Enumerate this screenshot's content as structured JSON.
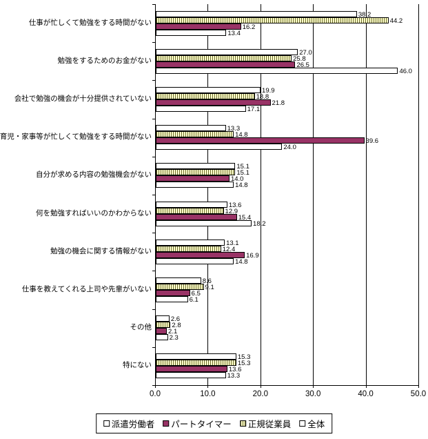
{
  "chart_data": {
    "type": "bar",
    "orientation": "horizontal",
    "title": "",
    "xlabel": "",
    "ylabel": "",
    "xlim": [
      0,
      50
    ],
    "x_ticks": [
      "0.0",
      "10.0",
      "20.0",
      "30.0",
      "40.0",
      "50.0"
    ],
    "grid": true,
    "legend_position": "bottom",
    "categories": [
      "仕事が忙しくて勉強をする時間がない",
      "勉強をするためのお金がない",
      "会社で勉強の機会が十分提供されていない",
      "育児・家事等が忙しくて勉強をする時間がない",
      "自分が求める内容の勉強機会がない",
      "何を勉強すればいいのかわからない",
      "勉強の機会に関する情報がない",
      "仕事を教えてくれる上司や先輩がいない",
      "その他",
      "特にない"
    ],
    "series": [
      {
        "name": "全体",
        "fill": "#ffffff",
        "pattern": "none",
        "values": [
          38.2,
          27.0,
          19.9,
          13.3,
          15.1,
          13.6,
          13.1,
          8.6,
          2.6,
          15.3
        ]
      },
      {
        "name": "正規従業員",
        "fill": "#ffffcc",
        "pattern": "vertical-hatch",
        "values": [
          44.2,
          25.8,
          18.8,
          14.8,
          15.1,
          12.9,
          12.4,
          9.1,
          2.8,
          15.3
        ]
      },
      {
        "name": "パートタイマー",
        "fill": "#993366",
        "pattern": "solid",
        "values": [
          16.2,
          26.5,
          21.8,
          39.6,
          14.0,
          15.4,
          16.9,
          6.5,
          2.1,
          13.6
        ]
      },
      {
        "name": "派遣労働者",
        "fill": "#ffffff",
        "pattern": "none",
        "values": [
          13.4,
          46.0,
          17.1,
          24.0,
          14.8,
          18.2,
          14.8,
          6.1,
          2.3,
          13.3
        ]
      }
    ],
    "series_note": "series listed in draw order top-to-bottom within each category group",
    "legend": [
      "派遣労働者",
      "パートタイマー",
      "正規従業員",
      "全体"
    ]
  }
}
